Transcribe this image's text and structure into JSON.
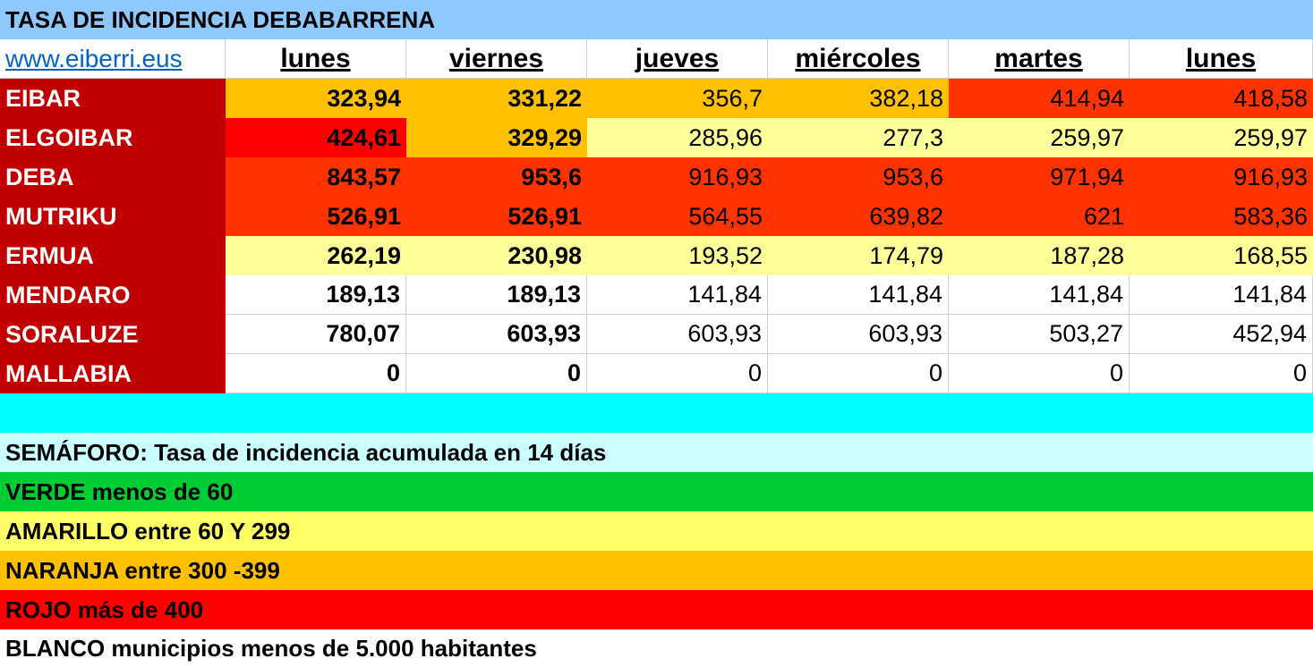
{
  "title": "TASA DE INCIDENCIA DEBABARRENA",
  "link": "www.eiberri.eus",
  "days": [
    "lunes",
    "viernes",
    "jueves",
    "miércoles",
    "martes",
    "lunes"
  ],
  "colors": {
    "title_bg": "#8ec8fe",
    "name_bg": "#c00000",
    "orange": "#ffc000",
    "red_orange": "#ff3300",
    "red": "#ff0000",
    "pale_yellow": "#ffff99",
    "cyan": "#00ffff",
    "light_cyan": "#ccffff",
    "green": "#00cc33",
    "yellow": "#ffff66",
    "white": "#ffffff"
  },
  "rows": [
    {
      "name": "EIBAR",
      "values": [
        "323,94",
        "331,22",
        "356,7",
        "382,18",
        "414,94",
        "418,58"
      ],
      "bg": [
        "#ffc000",
        "#ffc000",
        "#ffc000",
        "#ffc000",
        "#ff3300",
        "#ff3300"
      ]
    },
    {
      "name": "ELGOIBAR",
      "values": [
        "424,61",
        "329,29",
        "285,96",
        "277,3",
        "259,97",
        "259,97"
      ],
      "bg": [
        "#ff0000",
        "#ffc000",
        "#ffff99",
        "#ffff99",
        "#ffff99",
        "#ffff99"
      ]
    },
    {
      "name": "DEBA",
      "values": [
        "843,57",
        "953,6",
        "916,93",
        "953,6",
        "971,94",
        "916,93"
      ],
      "bg": [
        "#ff3300",
        "#ff3300",
        "#ff3300",
        "#ff3300",
        "#ff3300",
        "#ff3300"
      ]
    },
    {
      "name": "MUTRIKU",
      "values": [
        "526,91",
        "526,91",
        "564,55",
        "639,82",
        "621",
        "583,36"
      ],
      "bg": [
        "#ff3300",
        "#ff3300",
        "#ff3300",
        "#ff3300",
        "#ff3300",
        "#ff3300"
      ]
    },
    {
      "name": "ERMUA",
      "values": [
        "262,19",
        "230,98",
        "193,52",
        "174,79",
        "187,28",
        "168,55"
      ],
      "bg": [
        "#ffff99",
        "#ffff99",
        "#ffff99",
        "#ffff99",
        "#ffff99",
        "#ffff99"
      ]
    },
    {
      "name": "MENDARO",
      "values": [
        "189,13",
        "189,13",
        "141,84",
        "141,84",
        "141,84",
        "141,84"
      ],
      "bg": [
        "#ffffff",
        "#ffffff",
        "#ffffff",
        "#ffffff",
        "#ffffff",
        "#ffffff"
      ]
    },
    {
      "name": "SORALUZE",
      "values": [
        "780,07",
        "603,93",
        "603,93",
        "603,93",
        "503,27",
        "452,94"
      ],
      "bg": [
        "#ffffff",
        "#ffffff",
        "#ffffff",
        "#ffffff",
        "#ffffff",
        "#ffffff"
      ]
    },
    {
      "name": "MALLABIA",
      "values": [
        "0",
        "0",
        "0",
        "0",
        "0",
        "0"
      ],
      "bg": [
        "#ffffff",
        "#ffffff",
        "#ffffff",
        "#ffffff",
        "#ffffff",
        "#ffffff"
      ]
    }
  ],
  "legend": [
    {
      "text": "SEMÁFORO:  Tasa de incidencia acumulada en 14 días",
      "bg": "#ccffff"
    },
    {
      "text": "VERDE menos de 60",
      "bg": "#00cc33"
    },
    {
      "text": "AMARILLO entre 60 Y 299",
      "bg": "#ffff66"
    },
    {
      "text": "NARANJA entre 300 -399",
      "bg": "#ffc000"
    },
    {
      "text": "ROJO más de 400",
      "bg": "#ff0000"
    },
    {
      "text": "BLANCO municipios menos de 5.000 habitantes",
      "bg": "#ffffff"
    }
  ]
}
